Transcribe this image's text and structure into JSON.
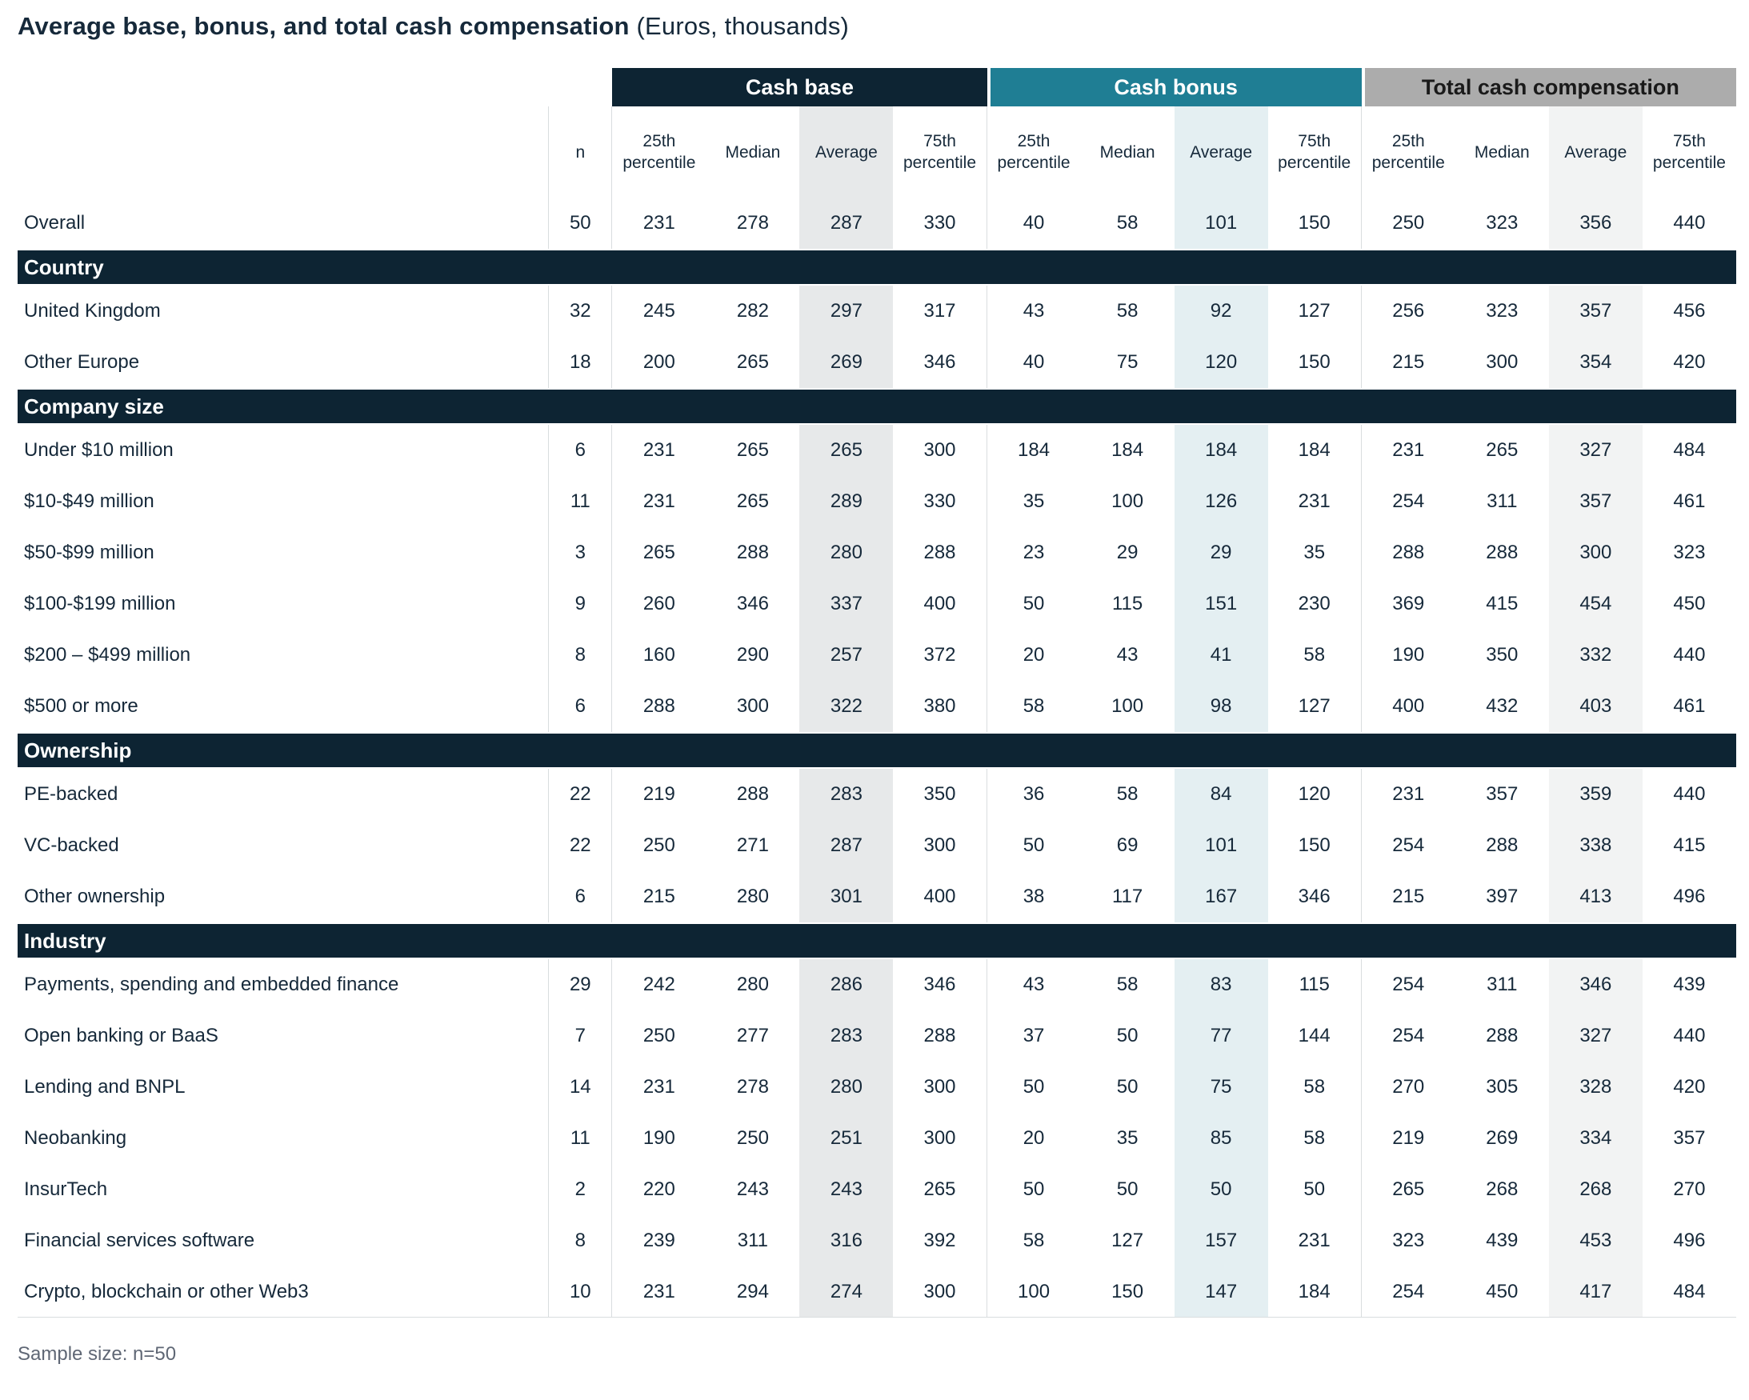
{
  "title": {
    "main": "Average base, bonus, and total cash compensation",
    "suffix": "(Euros, thousands)"
  },
  "table": {
    "n_header": "n",
    "groups": [
      {
        "label": "Cash base"
      },
      {
        "label": "Cash bonus"
      },
      {
        "label": "Total cash compensation"
      }
    ],
    "stat_headers": [
      "25th percentile",
      "Median",
      "Average",
      "75th percentile"
    ],
    "rows": [
      {
        "type": "data",
        "label": "Overall",
        "n": 50,
        "values": [
          231,
          278,
          287,
          330,
          40,
          58,
          101,
          150,
          250,
          323,
          356,
          440
        ]
      },
      {
        "type": "section",
        "label": "Country"
      },
      {
        "type": "data",
        "label": "United Kingdom",
        "n": 32,
        "values": [
          245,
          282,
          297,
          317,
          43,
          58,
          92,
          127,
          256,
          323,
          357,
          456
        ]
      },
      {
        "type": "data",
        "label": "Other Europe",
        "n": 18,
        "values": [
          200,
          265,
          269,
          346,
          40,
          75,
          120,
          150,
          215,
          300,
          354,
          420
        ]
      },
      {
        "type": "section",
        "label": "Company size"
      },
      {
        "type": "data",
        "label": "Under $10 million",
        "n": 6,
        "values": [
          231,
          265,
          265,
          300,
          184,
          184,
          184,
          184,
          231,
          265,
          327,
          484
        ]
      },
      {
        "type": "data",
        "label": "$10-$49 million",
        "n": 11,
        "values": [
          231,
          265,
          289,
          330,
          35,
          100,
          126,
          231,
          254,
          311,
          357,
          461
        ]
      },
      {
        "type": "data",
        "label": "$50-$99 million",
        "n": 3,
        "values": [
          265,
          288,
          280,
          288,
          23,
          29,
          29,
          35,
          288,
          288,
          300,
          323
        ]
      },
      {
        "type": "data",
        "label": "$100-$199 million",
        "n": 9,
        "values": [
          260,
          346,
          337,
          400,
          50,
          115,
          151,
          230,
          369,
          415,
          454,
          450
        ]
      },
      {
        "type": "data",
        "label": "$200 – $499 million",
        "n": 8,
        "values": [
          160,
          290,
          257,
          372,
          20,
          43,
          41,
          58,
          190,
          350,
          332,
          440
        ]
      },
      {
        "type": "data",
        "label": "$500 or more",
        "n": 6,
        "values": [
          288,
          300,
          322,
          380,
          58,
          100,
          98,
          127,
          400,
          432,
          403,
          461
        ]
      },
      {
        "type": "section",
        "label": "Ownership"
      },
      {
        "type": "data",
        "label": "PE-backed",
        "n": 22,
        "values": [
          219,
          288,
          283,
          350,
          36,
          58,
          84,
          120,
          231,
          357,
          359,
          440
        ]
      },
      {
        "type": "data",
        "label": "VC-backed",
        "n": 22,
        "values": [
          250,
          271,
          287,
          300,
          50,
          69,
          101,
          150,
          254,
          288,
          338,
          415
        ]
      },
      {
        "type": "data",
        "label": "Other ownership",
        "n": 6,
        "values": [
          215,
          280,
          301,
          400,
          38,
          117,
          167,
          346,
          215,
          397,
          413,
          496
        ]
      },
      {
        "type": "section",
        "label": "Industry"
      },
      {
        "type": "data",
        "label": "Payments, spending and embedded finance",
        "n": 29,
        "values": [
          242,
          280,
          286,
          346,
          43,
          58,
          83,
          115,
          254,
          311,
          346,
          439
        ]
      },
      {
        "type": "data",
        "label": "Open banking or BaaS",
        "n": 7,
        "values": [
          250,
          277,
          283,
          288,
          37,
          50,
          77,
          144,
          254,
          288,
          327,
          440
        ]
      },
      {
        "type": "data",
        "label": "Lending and BNPL",
        "n": 14,
        "values": [
          231,
          278,
          280,
          300,
          50,
          50,
          75,
          58,
          270,
          305,
          328,
          420
        ]
      },
      {
        "type": "data",
        "label": "Neobanking",
        "n": 11,
        "values": [
          190,
          250,
          251,
          300,
          20,
          35,
          85,
          58,
          219,
          269,
          334,
          357
        ]
      },
      {
        "type": "data",
        "label": "InsurTech",
        "n": 2,
        "values": [
          220,
          243,
          243,
          265,
          50,
          50,
          50,
          50,
          265,
          268,
          268,
          270
        ]
      },
      {
        "type": "data",
        "label": "Financial services software",
        "n": 8,
        "values": [
          239,
          311,
          316,
          392,
          58,
          127,
          157,
          231,
          323,
          439,
          453,
          496
        ]
      },
      {
        "type": "data",
        "label": "Crypto, blockchain or other Web3",
        "n": 10,
        "values": [
          231,
          294,
          274,
          300,
          100,
          150,
          147,
          184,
          254,
          450,
          417,
          484
        ]
      }
    ]
  },
  "footer": "Sample size: n=50",
  "colors": {
    "navy": "#0d2433",
    "teal": "#1f7e94",
    "gray": "#acacac",
    "text": "#16293a",
    "border": "#d9dddf",
    "shade_base": "#e7e9ea",
    "shade_bonus": "#e4eff2",
    "shade_total": "#f2f3f3",
    "footer_text": "#5f6775"
  }
}
